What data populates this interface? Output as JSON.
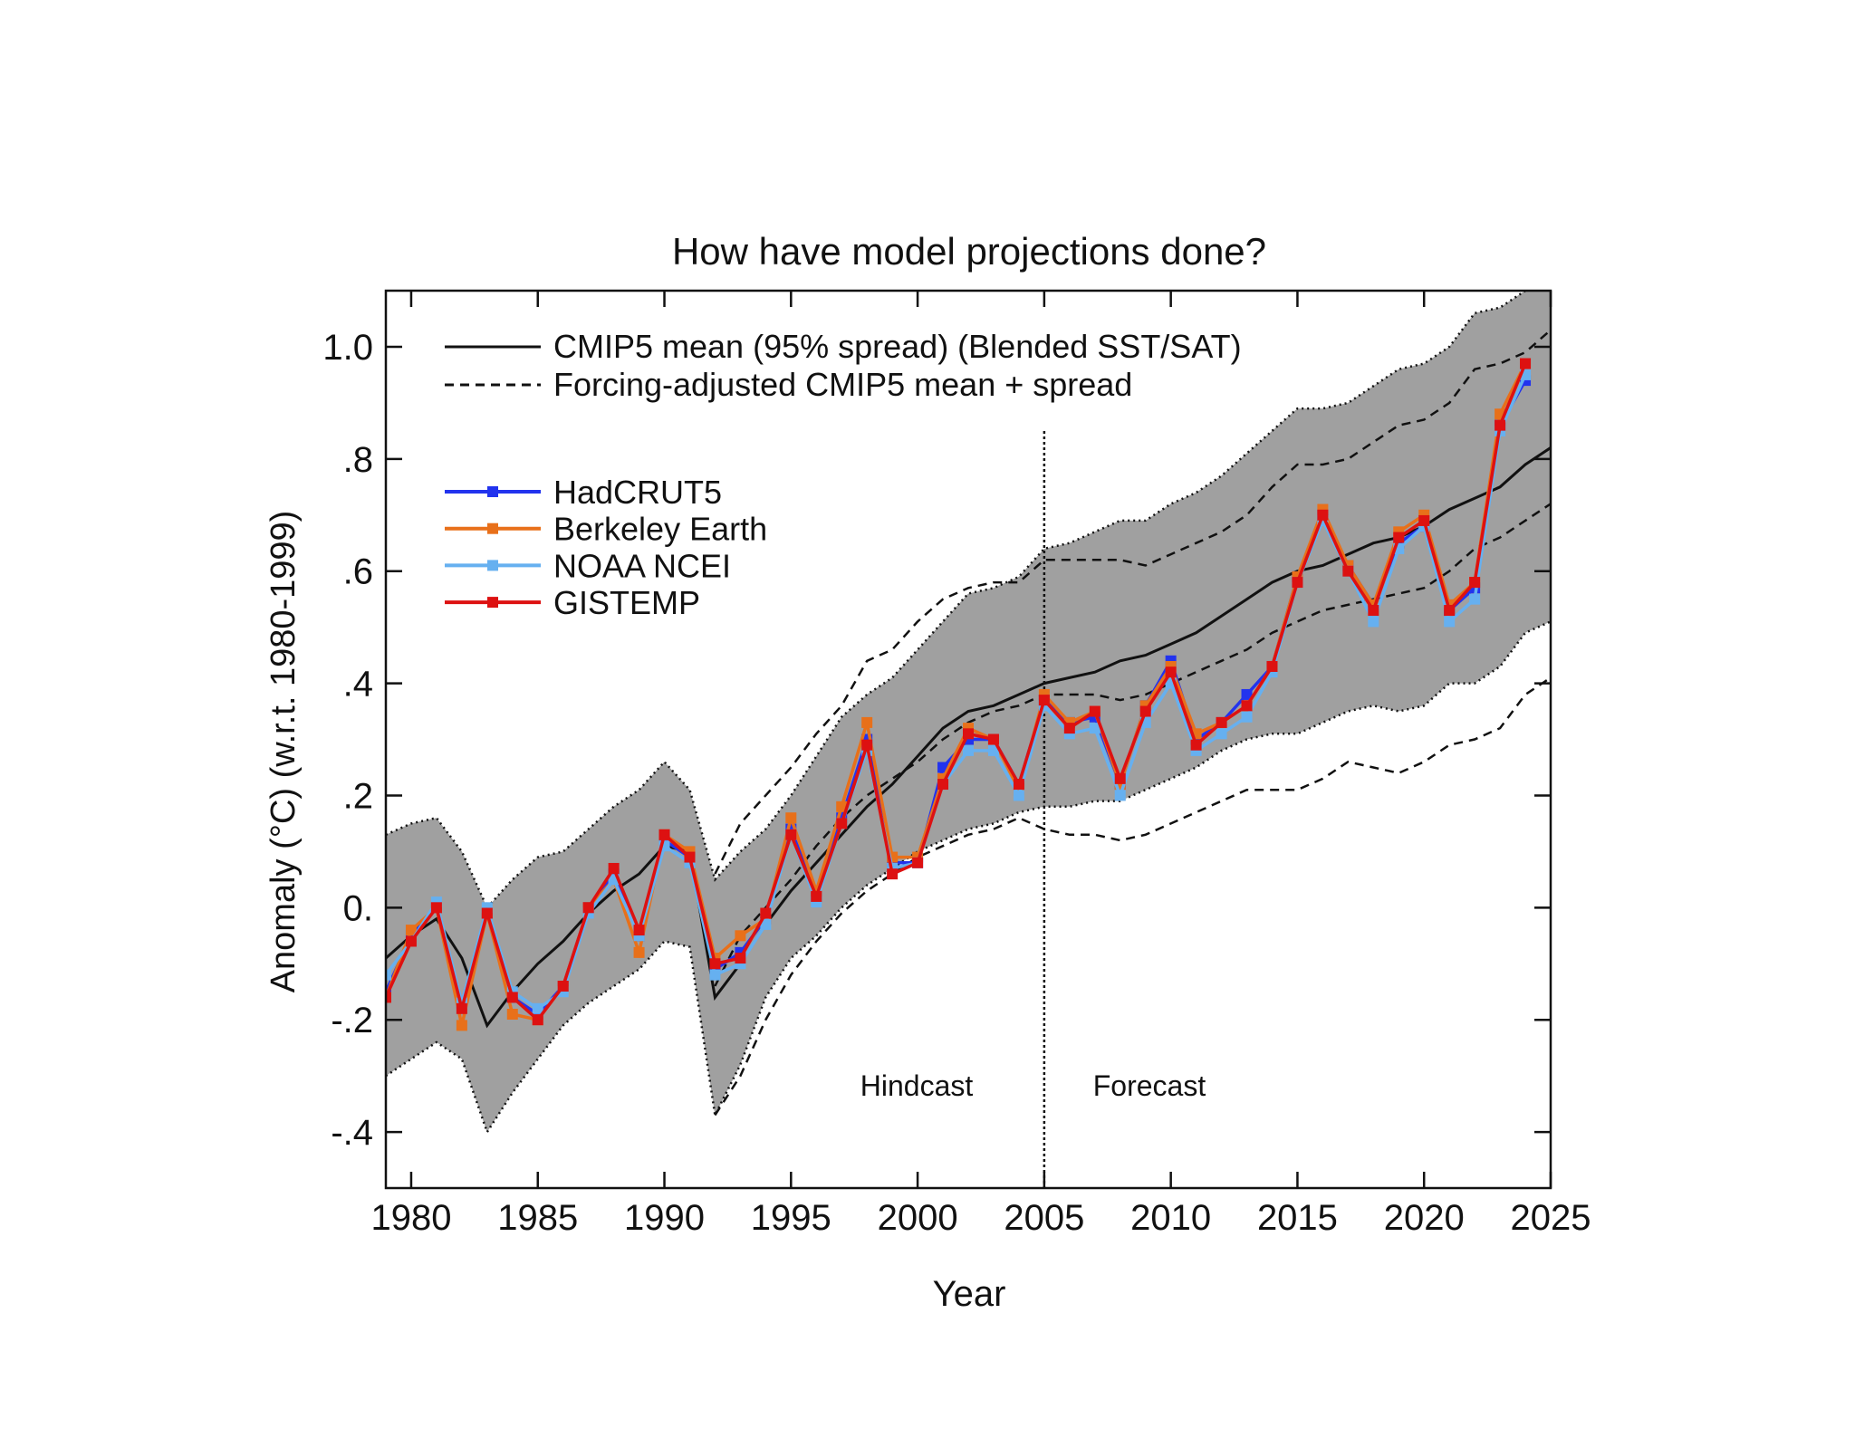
{
  "chart_data": {
    "type": "line",
    "title": "How have model projections done?",
    "xlabel": "Year",
    "ylabel": "Anomaly (°C) (w.r.t. 1980-1999)",
    "xlim": [
      1979,
      2025
    ],
    "ylim": [
      -0.5,
      1.1
    ],
    "xticks": [
      1980,
      1985,
      1990,
      1995,
      2000,
      2005,
      2010,
      2015,
      2020,
      2025
    ],
    "xtick_labels": [
      "1980",
      "1985",
      "1990",
      "1995",
      "2000",
      "2005",
      "2010",
      "2015",
      "2020",
      "2025"
    ],
    "yticks": [
      1.0,
      0.8,
      0.6,
      0.4,
      0.2,
      0.0,
      -0.2,
      -0.4
    ],
    "ytick_labels": [
      "1.0",
      ".8",
      ".6",
      ".4",
      ".2",
      "0.",
      "-.2",
      "-.4"
    ],
    "grid": false,
    "legend_placement": "top-left",
    "annotations": {
      "hindcast": "Hindcast",
      "forecast": "Forecast",
      "divider_year": 2005
    },
    "model": {
      "legend_mean": "CMIP5 mean (95% spread) (Blended SST/SAT)",
      "legend_adjusted": "Forcing-adjusted CMIP5 mean + spread",
      "spread_color": "#a0a0a0",
      "years": [
        1979,
        1980,
        1981,
        1982,
        1983,
        1984,
        1985,
        1986,
        1987,
        1988,
        1989,
        1990,
        1991,
        1992,
        1993,
        1994,
        1995,
        1996,
        1997,
        1998,
        1999,
        2000,
        2001,
        2002,
        2003,
        2004,
        2005,
        2006,
        2007,
        2008,
        2009,
        2010,
        2011,
        2012,
        2013,
        2014,
        2015,
        2016,
        2017,
        2018,
        2019,
        2020,
        2021,
        2022,
        2023,
        2024,
        2025
      ],
      "mean": [
        -0.09,
        -0.05,
        -0.02,
        -0.09,
        -0.21,
        -0.15,
        -0.1,
        -0.06,
        -0.01,
        0.03,
        0.06,
        0.11,
        0.1,
        -0.16,
        -0.1,
        -0.03,
        0.03,
        0.08,
        0.13,
        0.18,
        0.22,
        0.27,
        0.32,
        0.35,
        0.36,
        0.38,
        0.4,
        0.41,
        0.42,
        0.44,
        0.45,
        0.47,
        0.49,
        0.52,
        0.55,
        0.58,
        0.6,
        0.61,
        0.63,
        0.65,
        0.66,
        0.68,
        0.71,
        0.73,
        0.75,
        0.79,
        0.82
      ],
      "upper": [
        0.13,
        0.15,
        0.16,
        0.1,
        0.0,
        0.05,
        0.09,
        0.1,
        0.14,
        0.18,
        0.21,
        0.26,
        0.21,
        0.05,
        0.1,
        0.14,
        0.2,
        0.27,
        0.34,
        0.38,
        0.41,
        0.46,
        0.51,
        0.56,
        0.57,
        0.59,
        0.64,
        0.65,
        0.67,
        0.69,
        0.69,
        0.72,
        0.74,
        0.77,
        0.81,
        0.85,
        0.89,
        0.89,
        0.9,
        0.93,
        0.96,
        0.97,
        1.0,
        1.06,
        1.07,
        1.1,
        1.12
      ],
      "lower": [
        -0.3,
        -0.27,
        -0.24,
        -0.27,
        -0.4,
        -0.33,
        -0.27,
        -0.21,
        -0.17,
        -0.14,
        -0.11,
        -0.06,
        -0.07,
        -0.37,
        -0.28,
        -0.16,
        -0.09,
        -0.05,
        0.0,
        0.04,
        0.07,
        0.1,
        0.12,
        0.14,
        0.15,
        0.17,
        0.18,
        0.18,
        0.19,
        0.19,
        0.21,
        0.23,
        0.25,
        0.28,
        0.3,
        0.31,
        0.31,
        0.33,
        0.35,
        0.36,
        0.35,
        0.36,
        0.4,
        0.4,
        0.43,
        0.49,
        0.51
      ]
    },
    "adjusted": {
      "years": [
        1992,
        1993,
        1994,
        1995,
        1996,
        1997,
        1998,
        1999,
        2000,
        2001,
        2002,
        2003,
        2004,
        2005,
        2006,
        2007,
        2008,
        2009,
        2010,
        2011,
        2012,
        2013,
        2014,
        2015,
        2016,
        2017,
        2018,
        2019,
        2020,
        2021,
        2022,
        2023,
        2024,
        2025
      ],
      "upper": [
        0.06,
        0.15,
        0.2,
        0.25,
        0.31,
        0.36,
        0.44,
        0.46,
        0.51,
        0.55,
        0.57,
        0.58,
        0.58,
        0.62,
        0.62,
        0.62,
        0.62,
        0.61,
        0.63,
        0.65,
        0.67,
        0.7,
        0.75,
        0.79,
        0.79,
        0.8,
        0.83,
        0.86,
        0.87,
        0.9,
        0.96,
        0.97,
        0.99,
        1.03
      ],
      "mean": [
        -0.14,
        -0.05,
        0.0,
        0.05,
        0.11,
        0.16,
        0.2,
        0.23,
        0.26,
        0.3,
        0.33,
        0.35,
        0.36,
        0.38,
        0.38,
        0.38,
        0.37,
        0.38,
        0.4,
        0.42,
        0.44,
        0.46,
        0.49,
        0.51,
        0.53,
        0.54,
        0.55,
        0.56,
        0.57,
        0.6,
        0.64,
        0.66,
        0.69,
        0.72
      ],
      "lower": [
        -0.37,
        -0.3,
        -0.2,
        -0.12,
        -0.06,
        -0.01,
        0.03,
        0.06,
        0.09,
        0.11,
        0.13,
        0.14,
        0.16,
        0.14,
        0.13,
        0.13,
        0.12,
        0.13,
        0.15,
        0.17,
        0.19,
        0.21,
        0.21,
        0.21,
        0.23,
        0.26,
        0.25,
        0.24,
        0.26,
        0.29,
        0.3,
        0.32,
        0.38,
        0.41
      ]
    },
    "x": [
      1979,
      1980,
      1981,
      1982,
      1983,
      1984,
      1985,
      1986,
      1987,
      1988,
      1989,
      1990,
      1991,
      1992,
      1993,
      1994,
      1995,
      1996,
      1997,
      1998,
      1999,
      2000,
      2001,
      2002,
      2003,
      2004,
      2005,
      2006,
      2007,
      2008,
      2009,
      2010,
      2011,
      2012,
      2013,
      2014,
      2015,
      2016,
      2017,
      2018,
      2019,
      2020,
      2021,
      2022,
      2023,
      2024
    ],
    "series": [
      {
        "name": "HadCRUT5",
        "color": "#2233ee",
        "values": [
          -0.15,
          -0.05,
          0.0,
          -0.17,
          -0.01,
          -0.16,
          -0.19,
          -0.14,
          0.0,
          0.06,
          -0.05,
          0.12,
          0.09,
          -0.11,
          -0.08,
          -0.02,
          0.14,
          0.02,
          0.16,
          0.3,
          0.08,
          0.08,
          0.25,
          0.3,
          0.3,
          0.22,
          0.37,
          0.33,
          0.34,
          0.22,
          0.36,
          0.44,
          0.3,
          0.33,
          0.38,
          0.43,
          0.59,
          0.7,
          0.61,
          0.54,
          0.65,
          0.68,
          0.53,
          0.57,
          0.86,
          0.94
        ]
      },
      {
        "name": "Berkeley Earth",
        "color": "#e8701a",
        "values": [
          -0.16,
          -0.04,
          0.0,
          -0.21,
          -0.01,
          -0.19,
          -0.2,
          -0.14,
          0.0,
          0.05,
          -0.08,
          0.13,
          0.1,
          -0.09,
          -0.05,
          -0.02,
          0.16,
          0.03,
          0.18,
          0.33,
          0.09,
          0.09,
          0.23,
          0.32,
          0.3,
          0.21,
          0.38,
          0.33,
          0.35,
          0.22,
          0.36,
          0.43,
          0.31,
          0.33,
          0.36,
          0.43,
          0.59,
          0.71,
          0.61,
          0.54,
          0.67,
          0.7,
          0.54,
          0.58,
          0.88,
          0.97
        ]
      },
      {
        "name": "NOAA NCEI",
        "color": "#66b0f0",
        "values": [
          -0.12,
          -0.06,
          0.01,
          -0.17,
          0.0,
          -0.15,
          -0.18,
          -0.15,
          -0.01,
          0.05,
          -0.05,
          0.11,
          0.08,
          -0.12,
          -0.1,
          -0.03,
          0.13,
          0.01,
          0.15,
          0.28,
          0.07,
          0.08,
          0.22,
          0.28,
          0.28,
          0.2,
          0.36,
          0.31,
          0.32,
          0.2,
          0.33,
          0.4,
          0.28,
          0.31,
          0.34,
          0.42,
          0.58,
          0.69,
          0.6,
          0.51,
          0.64,
          0.68,
          0.51,
          0.55,
          0.85,
          0.95
        ]
      },
      {
        "name": "GISTEMP",
        "color": "#dd1111",
        "values": [
          -0.16,
          -0.06,
          0.0,
          -0.18,
          -0.01,
          -0.16,
          -0.2,
          -0.14,
          0.0,
          0.07,
          -0.04,
          0.13,
          0.09,
          -0.1,
          -0.09,
          -0.01,
          0.13,
          0.02,
          0.15,
          0.29,
          0.06,
          0.08,
          0.22,
          0.31,
          0.3,
          0.22,
          0.37,
          0.32,
          0.35,
          0.23,
          0.35,
          0.42,
          0.29,
          0.33,
          0.36,
          0.43,
          0.58,
          0.7,
          0.6,
          0.53,
          0.66,
          0.69,
          0.53,
          0.58,
          0.86,
          0.97
        ]
      }
    ]
  }
}
